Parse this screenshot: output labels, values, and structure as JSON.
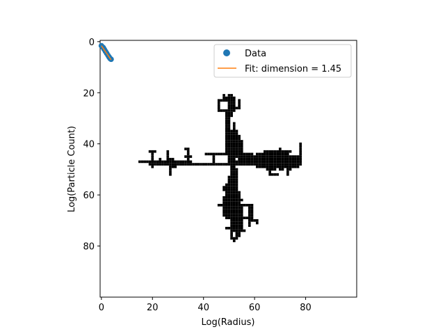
{
  "chart_data": {
    "type": "scatter",
    "title": "",
    "xlabel": "Log(Radius)",
    "ylabel": "Log(Particle Count)",
    "xlim": [
      -0.5,
      100
    ],
    "ylim": [
      100,
      -0.5
    ],
    "y_inverted": true,
    "xticks": [
      0,
      20,
      40,
      60,
      80
    ],
    "yticks": [
      0,
      20,
      40,
      60,
      80
    ],
    "grid": false,
    "legend_position": "top-right",
    "series": [
      {
        "name": "Data",
        "kind": "points",
        "color": "#1f77b4",
        "points": [
          [
            0.0,
            1.6
          ],
          [
            0.7,
            2.3
          ],
          [
            1.1,
            3.0
          ],
          [
            1.6,
            3.8
          ],
          [
            2.1,
            4.6
          ],
          [
            2.6,
            5.4
          ],
          [
            3.0,
            6.0
          ],
          [
            3.4,
            6.6
          ],
          [
            3.8,
            6.9
          ]
        ]
      },
      {
        "name": "Fit: dimension = 1.45",
        "kind": "line",
        "color": "#ff7f0e",
        "points": [
          [
            0.0,
            1.6
          ],
          [
            3.8,
            7.1
          ]
        ]
      }
    ],
    "background_image": {
      "description": "diffusion-limited aggregation cluster drawn as black pixels",
      "color": "#000000",
      "center": [
        51,
        48
      ],
      "extent_x": [
        15,
        78
      ],
      "extent_y": [
        21,
        79
      ]
    }
  }
}
